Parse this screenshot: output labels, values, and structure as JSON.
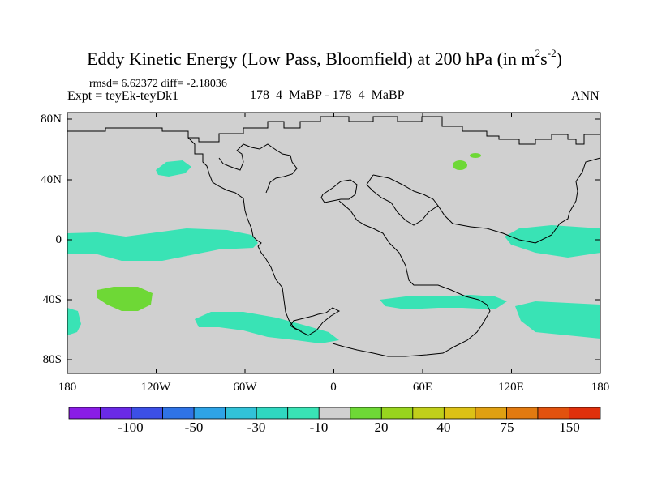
{
  "header": {
    "title_main": "Eddy Kinetic Energy (Low Pass, Bloomfield) at 200 hPa (in m",
    "title_exp1": "2",
    "title_mid": "s",
    "title_exp2": "-2",
    "title_end": ")",
    "stats": "rmsd= 6.62372 diff= -2.18036",
    "experiment": "Expt = teyEk-teyDk1",
    "cases": "178_4_MaBP - 178_4_MaBP",
    "period": "ANN"
  },
  "axes": {
    "lat_labels": [
      "80N",
      "40N",
      "0",
      "40S",
      "80S"
    ],
    "lon_labels": [
      "180",
      "120W",
      "60W",
      "0",
      "60E",
      "120E",
      "180"
    ]
  },
  "colorbar": {
    "labels": [
      "-100",
      "-50",
      "-30",
      "-10",
      "20",
      "40",
      "75",
      "150"
    ],
    "colors": [
      "#8a1ce6",
      "#6a2ae6",
      "#3c4fe6",
      "#2f73e6",
      "#2ea3e6",
      "#31c2d8",
      "#2fd7c0",
      "#39e3b5",
      "#d0d0d0",
      "#6ed836",
      "#98d41e",
      "#c0cf1a",
      "#dcc116",
      "#e0a012",
      "#e27a10",
      "#e2520e",
      "#e0300c"
    ]
  },
  "map": {
    "background": "#d0d0d0",
    "neg_color": "#39e3b5",
    "pos_color": "#6ed836"
  }
}
